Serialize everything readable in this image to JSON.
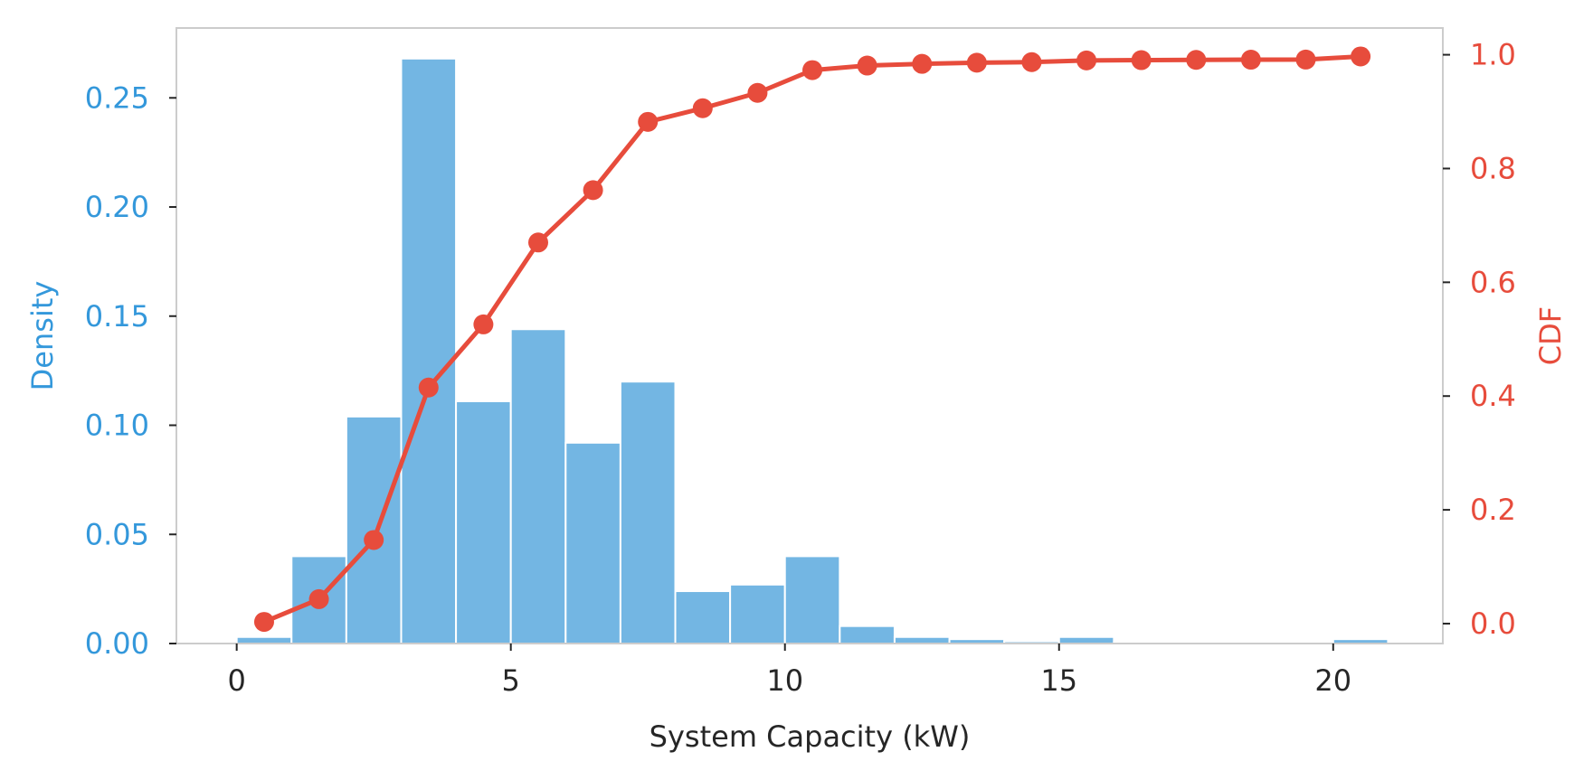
{
  "chart_data": {
    "type": "bar",
    "xlabel": "System Capacity (kW)",
    "ylabel": "Density",
    "y2label": "CDF",
    "xlim": [
      -1.1,
      22.0
    ],
    "ylim": [
      0,
      0.282
    ],
    "y2lim": [
      -0.035,
      1.047
    ],
    "x_ticks": [
      0,
      5,
      10,
      15,
      20
    ],
    "y_ticks": [
      0.0,
      0.05,
      0.1,
      0.15,
      0.2,
      0.25
    ],
    "y2_ticks": [
      0.0,
      0.2,
      0.4,
      0.6,
      0.8,
      1.0
    ],
    "grid": false,
    "colors": {
      "density": "#3498db",
      "bars": "#73b6e3",
      "cdf": "#e74c3c",
      "text": "#262626",
      "frame": "#cccccc"
    },
    "series": [
      {
        "type": "bar",
        "bin_edges": [
          0,
          1,
          2,
          3,
          4,
          5,
          6,
          7,
          8,
          9,
          10,
          11,
          12,
          13,
          14,
          15,
          16,
          17,
          18,
          19,
          20,
          21
        ],
        "values": [
          0.003,
          0.04,
          0.104,
          0.268,
          0.111,
          0.144,
          0.092,
          0.12,
          0.024,
          0.027,
          0.04,
          0.008,
          0.003,
          0.002,
          0.001,
          0.003,
          0.0005,
          0.0005,
          0.0003,
          0.0002,
          0.002
        ]
      },
      {
        "type": "line",
        "x": [
          0.5,
          1.5,
          2.5,
          3.5,
          4.5,
          5.5,
          6.5,
          7.5,
          8.5,
          9.5,
          10.5,
          11.5,
          12.5,
          13.5,
          14.5,
          15.5,
          16.5,
          17.5,
          18.5,
          19.5,
          20.5
        ],
        "y": [
          0.003,
          0.043,
          0.147,
          0.415,
          0.526,
          0.67,
          0.762,
          0.882,
          0.906,
          0.933,
          0.973,
          0.981,
          0.984,
          0.986,
          0.987,
          0.99,
          0.9905,
          0.991,
          0.9913,
          0.9915,
          0.997
        ]
      }
    ]
  }
}
